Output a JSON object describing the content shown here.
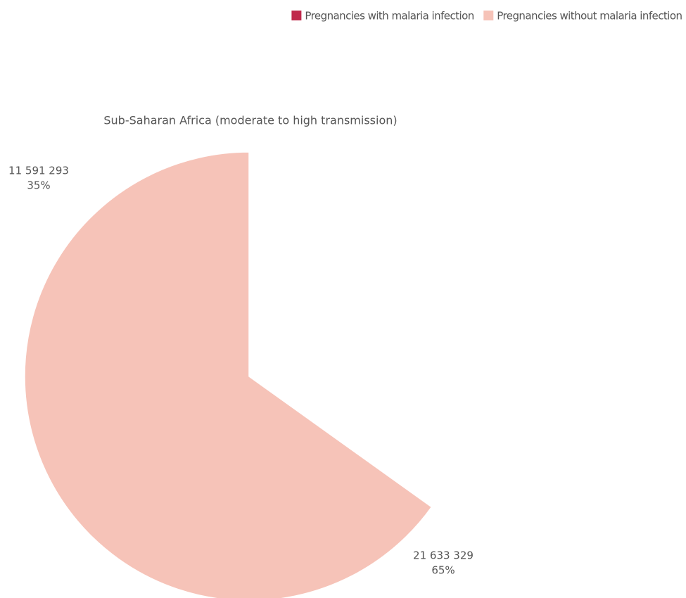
{
  "chart_data": {
    "type": "pie",
    "title": "Sub-Saharan Africa (moderate to high transmission)",
    "categories": [
      "Pregnancies with malaria infection",
      "Pregnancies without malaria infection"
    ],
    "values": [
      11591293,
      21633329
    ],
    "value_labels": [
      "11 591 293",
      "21 633 329"
    ],
    "percentages": [
      35,
      65
    ],
    "percentage_labels": [
      "35%",
      "65%"
    ],
    "colors": [
      "#c0294c",
      "#f6c3b8"
    ],
    "legend": "top-right"
  }
}
